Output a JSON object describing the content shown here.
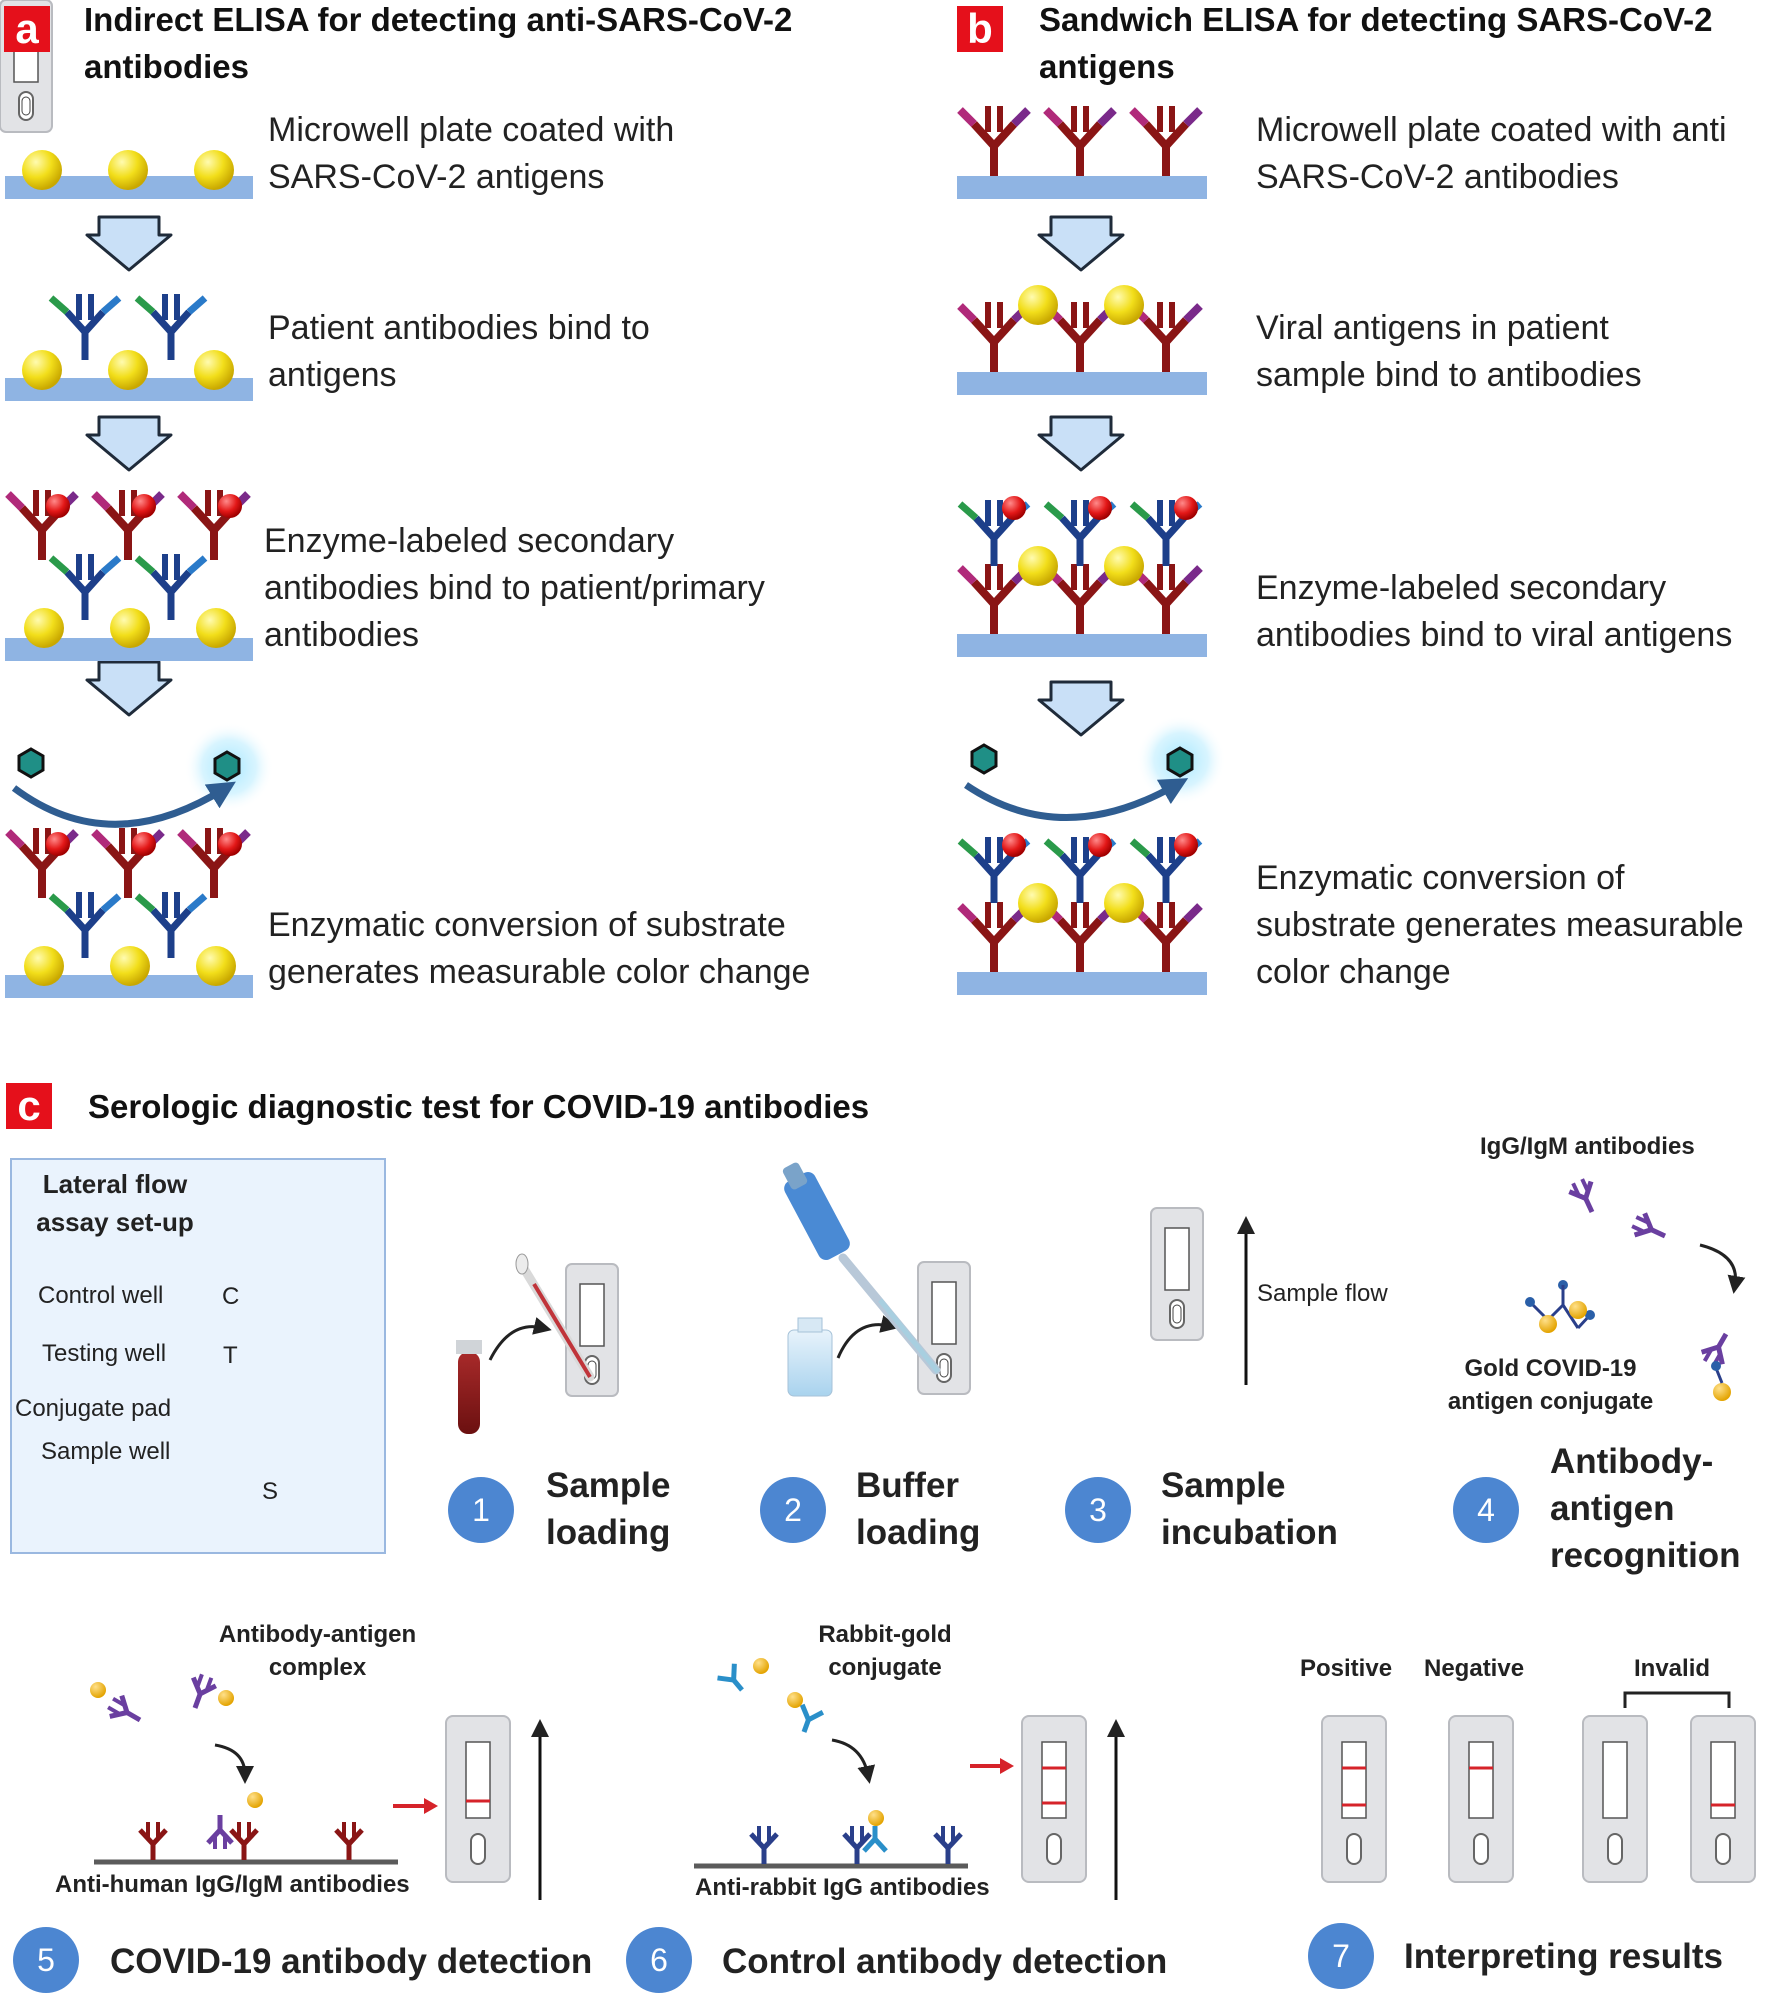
{
  "panels": {
    "a": {
      "letter": "a",
      "title_1": "Indirect ELISA for detecting anti-SARS-CoV-2",
      "title_2": "antibodies",
      "steps": [
        {
          "l1": "Microwell plate coated with",
          "l2": "SARS-CoV-2 antigens",
          "l3": ""
        },
        {
          "l1": "Patient antibodies bind to",
          "l2": "antigens",
          "l3": ""
        },
        {
          "l1": "Enzyme-labeled secondary",
          "l2": "antibodies bind to patient/primary",
          "l3": "antibodies"
        },
        {
          "l1": "Enzymatic conversion of substrate",
          "l2": "generates measurable color change",
          "l3": ""
        }
      ]
    },
    "b": {
      "letter": "b",
      "title_1": "Sandwich ELISA for detecting SARS-CoV-2",
      "title_2": "antigens",
      "steps": [
        {
          "l1": "Microwell plate coated with anti",
          "l2": "SARS-CoV-2 antibodies",
          "l3": ""
        },
        {
          "l1": "Viral antigens in patient",
          "l2": "sample bind to antibodies",
          "l3": ""
        },
        {
          "l1": "Enzyme-labeled secondary",
          "l2": "antibodies bind to viral antigens",
          "l3": ""
        },
        {
          "l1": "Enzymatic conversion of",
          "l2": "substrate generates measurable",
          "l3": "color change"
        }
      ]
    },
    "c": {
      "letter": "c",
      "title": "Serologic diagnostic test for COVID-19 antibodies",
      "setup_title_1": "Lateral flow",
      "setup_title_2": "assay set-up",
      "setup_labels": [
        "Control well",
        "Testing well",
        "Conjugate pad",
        "Sample well"
      ],
      "cassette_letters": {
        "c": "C",
        "t": "T",
        "s": "S"
      },
      "sample_flow": "Sample flow",
      "igg_igm": "IgG/IgM antibodies",
      "gold_conj_1": "Gold COVID-19",
      "gold_conj_2": "antigen conjugate",
      "complex_1": "Antibody-antigen",
      "complex_2": "complex",
      "anti_human": "Anti-human IgG/IgM antibodies",
      "rabbit_1": "Rabbit-gold",
      "rabbit_2": "conjugate",
      "anti_rabbit": "Anti-rabbit IgG antibodies",
      "result_labels": {
        "positive": "Positive",
        "negative": "Negative",
        "invalid": "Invalid"
      },
      "steps": [
        {
          "num": "1",
          "l1": "Sample",
          "l2": "loading",
          "l3": ""
        },
        {
          "num": "2",
          "l1": "Buffer",
          "l2": "loading",
          "l3": ""
        },
        {
          "num": "3",
          "l1": "Sample",
          "l2": "incubation",
          "l3": ""
        },
        {
          "num": "4",
          "l1": "Antibody-",
          "l2": "antigen",
          "l3": "recognition"
        },
        {
          "num": "5",
          "l1": "COVID-19 antibody detection",
          "l2": "",
          "l3": ""
        },
        {
          "num": "6",
          "l1": "Control antibody detection",
          "l2": "",
          "l3": ""
        },
        {
          "num": "7",
          "l1": "Interpreting results",
          "l2": "",
          "l3": ""
        }
      ]
    }
  },
  "colors": {
    "panel_letter_bg": "#e5101b",
    "plate": "#8fb4e3",
    "arrow_fill": "#c9e0f7",
    "antigen_yellow": "#f2de1a",
    "enzyme_red": "#e31818",
    "substrate_teal": "#1f8f86",
    "step_circle": "#4c86d1",
    "result_line": "#d6232a"
  }
}
